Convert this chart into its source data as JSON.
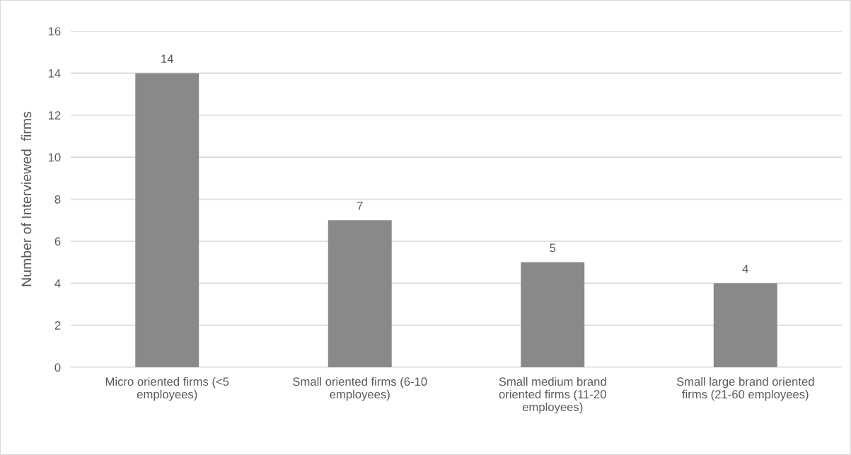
{
  "chart_data": {
    "type": "bar",
    "ylabel": "Number of Interviewed  firms",
    "categories": [
      "Micro oriented firms (<5 employees)",
      "Small oriented firms (6-10 employees)",
      "Small medium brand oriented firms (11-20 employees)",
      "Small large brand oriented firms (21-60 employees)"
    ],
    "values": [
      14,
      7,
      5,
      4
    ],
    "color": "#898989",
    "ylim": [
      0,
      16
    ],
    "yticks": [
      0,
      2,
      4,
      6,
      8,
      10,
      12,
      14,
      16
    ],
    "grid": "y",
    "data_labels": true,
    "legend": false
  }
}
